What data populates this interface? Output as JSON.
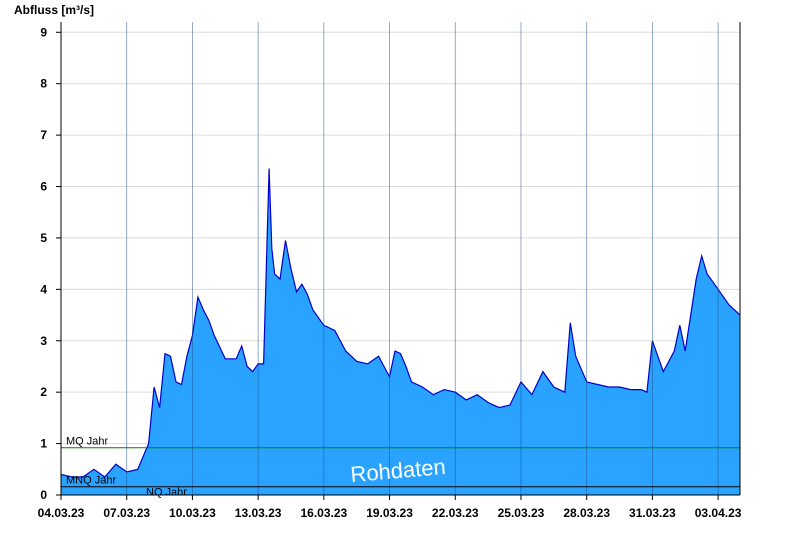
{
  "chart_data": {
    "type": "area",
    "ylabel": "Abfluss [m³/s]",
    "ylim": [
      0,
      9.2
    ],
    "y_ticks": [
      "0",
      "1",
      "2",
      "3",
      "4",
      "5",
      "6",
      "7",
      "8",
      "9"
    ],
    "x_range": [
      "2023-03-04T00:00",
      "2023-04-04T00:00"
    ],
    "x_ticks": [
      {
        "date": "2023-03-04",
        "label": "04.03.23"
      },
      {
        "date": "2023-03-07",
        "label": "07.03.23"
      },
      {
        "date": "2023-03-10",
        "label": "10.03.23"
      },
      {
        "date": "2023-03-13",
        "label": "13.03.23"
      },
      {
        "date": "2023-03-16",
        "label": "16.03.23"
      },
      {
        "date": "2023-03-19",
        "label": "19.03.23"
      },
      {
        "date": "2023-03-22",
        "label": "22.03.23"
      },
      {
        "date": "2023-03-25",
        "label": "25.03.23"
      },
      {
        "date": "2023-03-28",
        "label": "28.03.23"
      },
      {
        "date": "2023-03-31",
        "label": "31.03.23"
      },
      {
        "date": "2023-04-03",
        "label": "03.04.23"
      }
    ],
    "grid": true,
    "colors": {
      "fill": "#29a3ff",
      "line": "#0000cc",
      "mq": "#008000",
      "nq": "#000000",
      "grid": "#dcdcdc"
    },
    "reference_lines": [
      {
        "name": "MQ Jahr",
        "value": 0.92
      },
      {
        "name": "MNQ Jahr",
        "value": 0.18
      },
      {
        "name": "NQ Jahr",
        "value": 0.18
      }
    ],
    "annotation": "Rohdaten",
    "x": [
      "2023-03-04T00:00",
      "2023-03-04T12:00",
      "2023-03-05T00:00",
      "2023-03-05T12:00",
      "2023-03-06T00:00",
      "2023-03-06T12:00",
      "2023-03-07T00:00",
      "2023-03-07T12:00",
      "2023-03-08T00:00",
      "2023-03-08T06:00",
      "2023-03-08T12:00",
      "2023-03-08T18:00",
      "2023-03-09T00:00",
      "2023-03-09T06:00",
      "2023-03-09T12:00",
      "2023-03-09T18:00",
      "2023-03-10T00:00",
      "2023-03-10T06:00",
      "2023-03-10T12:00",
      "2023-03-10T18:00",
      "2023-03-11T00:00",
      "2023-03-11T12:00",
      "2023-03-12T00:00",
      "2023-03-12T06:00",
      "2023-03-12T12:00",
      "2023-03-12T18:00",
      "2023-03-13T00:00",
      "2023-03-13T06:00",
      "2023-03-13T12:00",
      "2023-03-13T15:00",
      "2023-03-13T18:00",
      "2023-03-14T00:00",
      "2023-03-14T06:00",
      "2023-03-14T12:00",
      "2023-03-14T18:00",
      "2023-03-15T00:00",
      "2023-03-15T06:00",
      "2023-03-15T12:00",
      "2023-03-16T00:00",
      "2023-03-16T12:00",
      "2023-03-17T00:00",
      "2023-03-17T12:00",
      "2023-03-18T00:00",
      "2023-03-18T12:00",
      "2023-03-19T00:00",
      "2023-03-19T06:00",
      "2023-03-19T12:00",
      "2023-03-19T18:00",
      "2023-03-20T00:00",
      "2023-03-20T12:00",
      "2023-03-21T00:00",
      "2023-03-21T12:00",
      "2023-03-22T00:00",
      "2023-03-22T12:00",
      "2023-03-23T00:00",
      "2023-03-23T12:00",
      "2023-03-24T00:00",
      "2023-03-24T12:00",
      "2023-03-25T00:00",
      "2023-03-25T12:00",
      "2023-03-26T00:00",
      "2023-03-26T12:00",
      "2023-03-27T00:00",
      "2023-03-27T06:00",
      "2023-03-27T12:00",
      "2023-03-28T00:00",
      "2023-03-28T12:00",
      "2023-03-29T00:00",
      "2023-03-29T12:00",
      "2023-03-30T00:00",
      "2023-03-30T12:00",
      "2023-03-30T18:00",
      "2023-03-31T00:00",
      "2023-03-31T12:00",
      "2023-04-01T00:00",
      "2023-04-01T06:00",
      "2023-04-01T12:00",
      "2023-04-02T00:00",
      "2023-04-02T06:00",
      "2023-04-02T12:00",
      "2023-04-03T00:00",
      "2023-04-03T12:00",
      "2023-04-04T00:00"
    ],
    "values": [
      0.4,
      0.35,
      0.35,
      0.5,
      0.35,
      0.6,
      0.45,
      0.5,
      1.0,
      2.1,
      1.7,
      2.75,
      2.7,
      2.2,
      2.15,
      2.7,
      3.1,
      3.85,
      3.6,
      3.4,
      3.1,
      2.65,
      2.65,
      2.9,
      2.5,
      2.4,
      2.55,
      2.55,
      6.35,
      4.8,
      4.3,
      4.2,
      4.95,
      4.4,
      3.95,
      4.1,
      3.9,
      3.6,
      3.3,
      3.2,
      2.8,
      2.6,
      2.55,
      2.7,
      2.3,
      2.8,
      2.75,
      2.5,
      2.2,
      2.1,
      1.95,
      2.05,
      2.0,
      1.85,
      1.95,
      1.8,
      1.7,
      1.75,
      2.2,
      1.95,
      2.4,
      2.1,
      2.0,
      3.35,
      2.7,
      2.2,
      2.15,
      2.1,
      2.1,
      2.05,
      2.05,
      2.0,
      3.0,
      2.4,
      2.8,
      3.3,
      2.8,
      4.2,
      4.65,
      4.3,
      4.0,
      3.7,
      3.5
    ]
  }
}
